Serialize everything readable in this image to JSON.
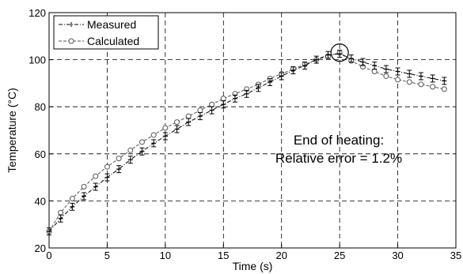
{
  "chart_data": {
    "type": "line",
    "xlabel": "Time (s)",
    "ylabel": "Temperature (°C)",
    "xlim": [
      0,
      35
    ],
    "ylim": [
      20,
      120
    ],
    "xticks": [
      0,
      5,
      10,
      15,
      20,
      25,
      30,
      35
    ],
    "yticks": [
      20,
      40,
      60,
      80,
      100,
      120
    ],
    "grid": true,
    "legend_position": "top-left",
    "series": [
      {
        "name": "Measured",
        "style": "dash-dot line with plus markers and error bars",
        "color": "#000000",
        "x": [
          0,
          1,
          2,
          3,
          4,
          5,
          6,
          7,
          8,
          9,
          10,
          11,
          12,
          13,
          14,
          15,
          16,
          17,
          18,
          19,
          20,
          21,
          22,
          23,
          24,
          25,
          26,
          27,
          28,
          29,
          30,
          31,
          32,
          33,
          34
        ],
        "y": [
          27,
          32.5,
          37.5,
          42,
          46,
          50,
          53.5,
          57.5,
          61,
          64.5,
          67.5,
          70.5,
          73.5,
          76,
          78.5,
          81,
          83.5,
          85.5,
          88,
          90.5,
          93,
          95.5,
          97.5,
          100,
          102,
          102.5,
          100.5,
          99,
          97.5,
          96,
          95,
          94,
          93,
          92,
          91
        ],
        "error": 1.5
      },
      {
        "name": "Calculated",
        "style": "dashed line with circle markers",
        "color": "#555555",
        "x": [
          0,
          1,
          2,
          3,
          4,
          5,
          6,
          7,
          8,
          9,
          10,
          11,
          12,
          13,
          14,
          15,
          16,
          17,
          18,
          19,
          20,
          21,
          22,
          23,
          24,
          25,
          26,
          27,
          28,
          29,
          30,
          31,
          32,
          33,
          34
        ],
        "y": [
          27,
          35,
          41,
          46,
          50.5,
          54.5,
          58,
          61.5,
          65,
          68,
          71,
          73.5,
          76,
          78.5,
          81,
          83.5,
          85.5,
          87.5,
          89.5,
          92,
          94,
          96,
          98,
          100,
          101.5,
          103,
          99.5,
          97,
          95,
          93,
          91.5,
          90.5,
          89.5,
          88.5,
          87.5
        ]
      }
    ],
    "annotation": {
      "lines": [
        "End of heating:",
        "Relative error =  1.2%"
      ],
      "target_x": 25,
      "target_y": 103
    }
  }
}
